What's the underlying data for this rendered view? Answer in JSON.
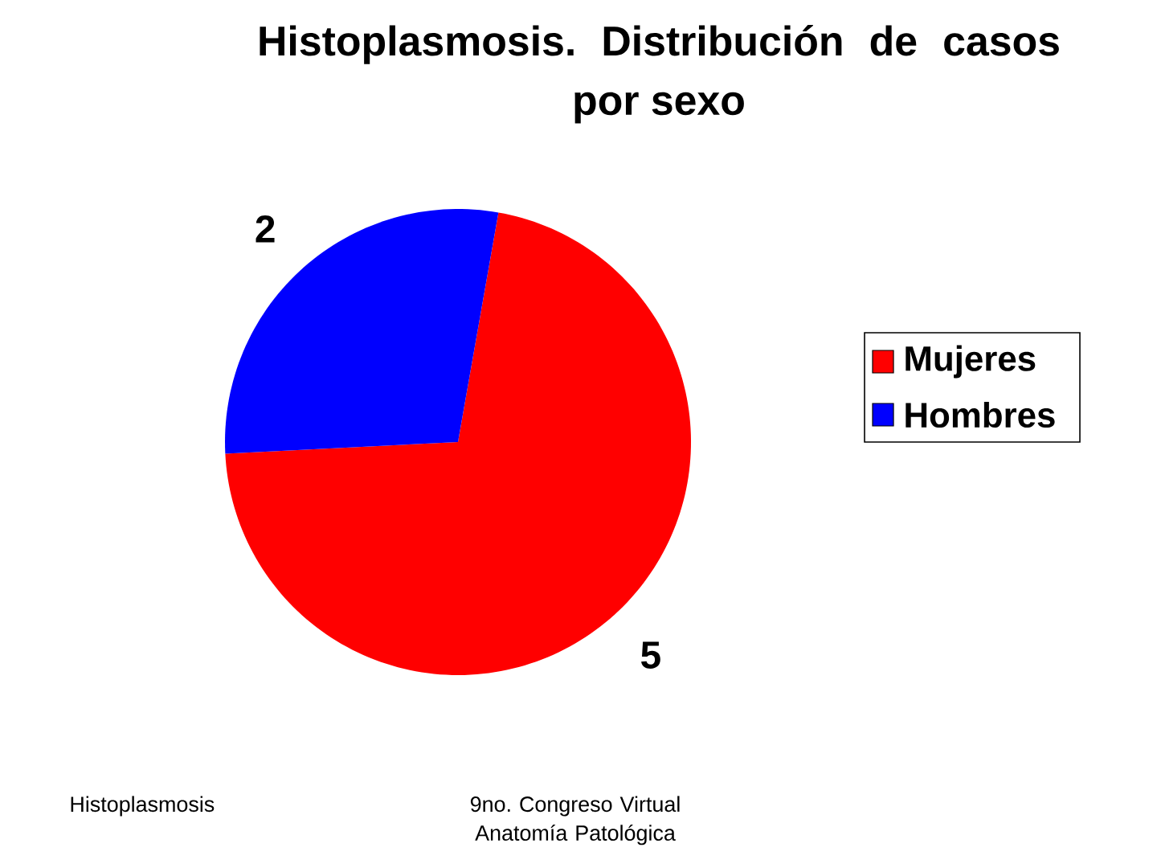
{
  "chart_data": {
    "type": "pie",
    "title": "Histoplasmosis. Distribución de casos por sexo",
    "categories": [
      "Mujeres",
      "Hombres"
    ],
    "values": [
      5,
      2
    ],
    "colors": [
      "#ff0000",
      "#0000ff"
    ],
    "data_labels": true,
    "legend": "right",
    "annotations": [
      "Histoplasmosis",
      "9no. Congreso Virtual Anatomía Patológica"
    ]
  }
}
